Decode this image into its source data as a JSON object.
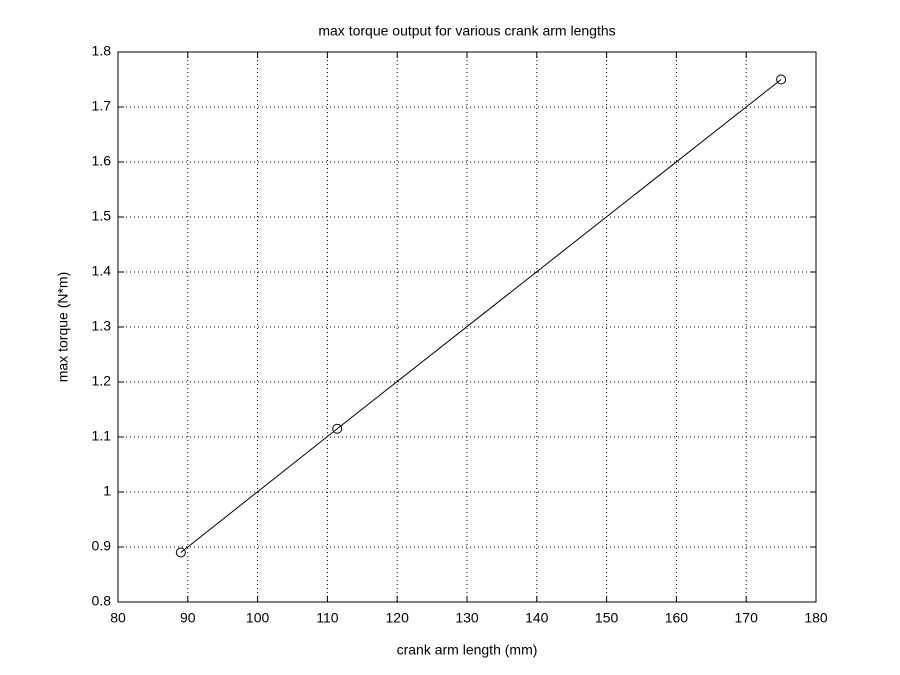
{
  "chart_data": {
    "type": "line",
    "title": "max torque output for various crank arm lengths",
    "x_label": "crank arm length (mm)",
    "y_label": "max torque (N*m)",
    "x": [
      89,
      111.4,
      175
    ],
    "series": [
      {
        "color": "#000000",
        "values": [
          0.89,
          1.115,
          1.75
        ]
      }
    ],
    "xlim": [
      80,
      180
    ],
    "xticks": [
      80,
      90,
      100,
      110,
      120,
      130,
      140,
      150,
      160,
      170,
      180
    ],
    "ylim": [
      0.8,
      1.8
    ],
    "yticks": [
      0.8,
      0.9,
      1,
      1.1,
      1.2,
      1.3,
      1.4,
      1.5,
      1.6,
      1.7,
      1.8
    ],
    "grid": true,
    "marker": "circle"
  }
}
